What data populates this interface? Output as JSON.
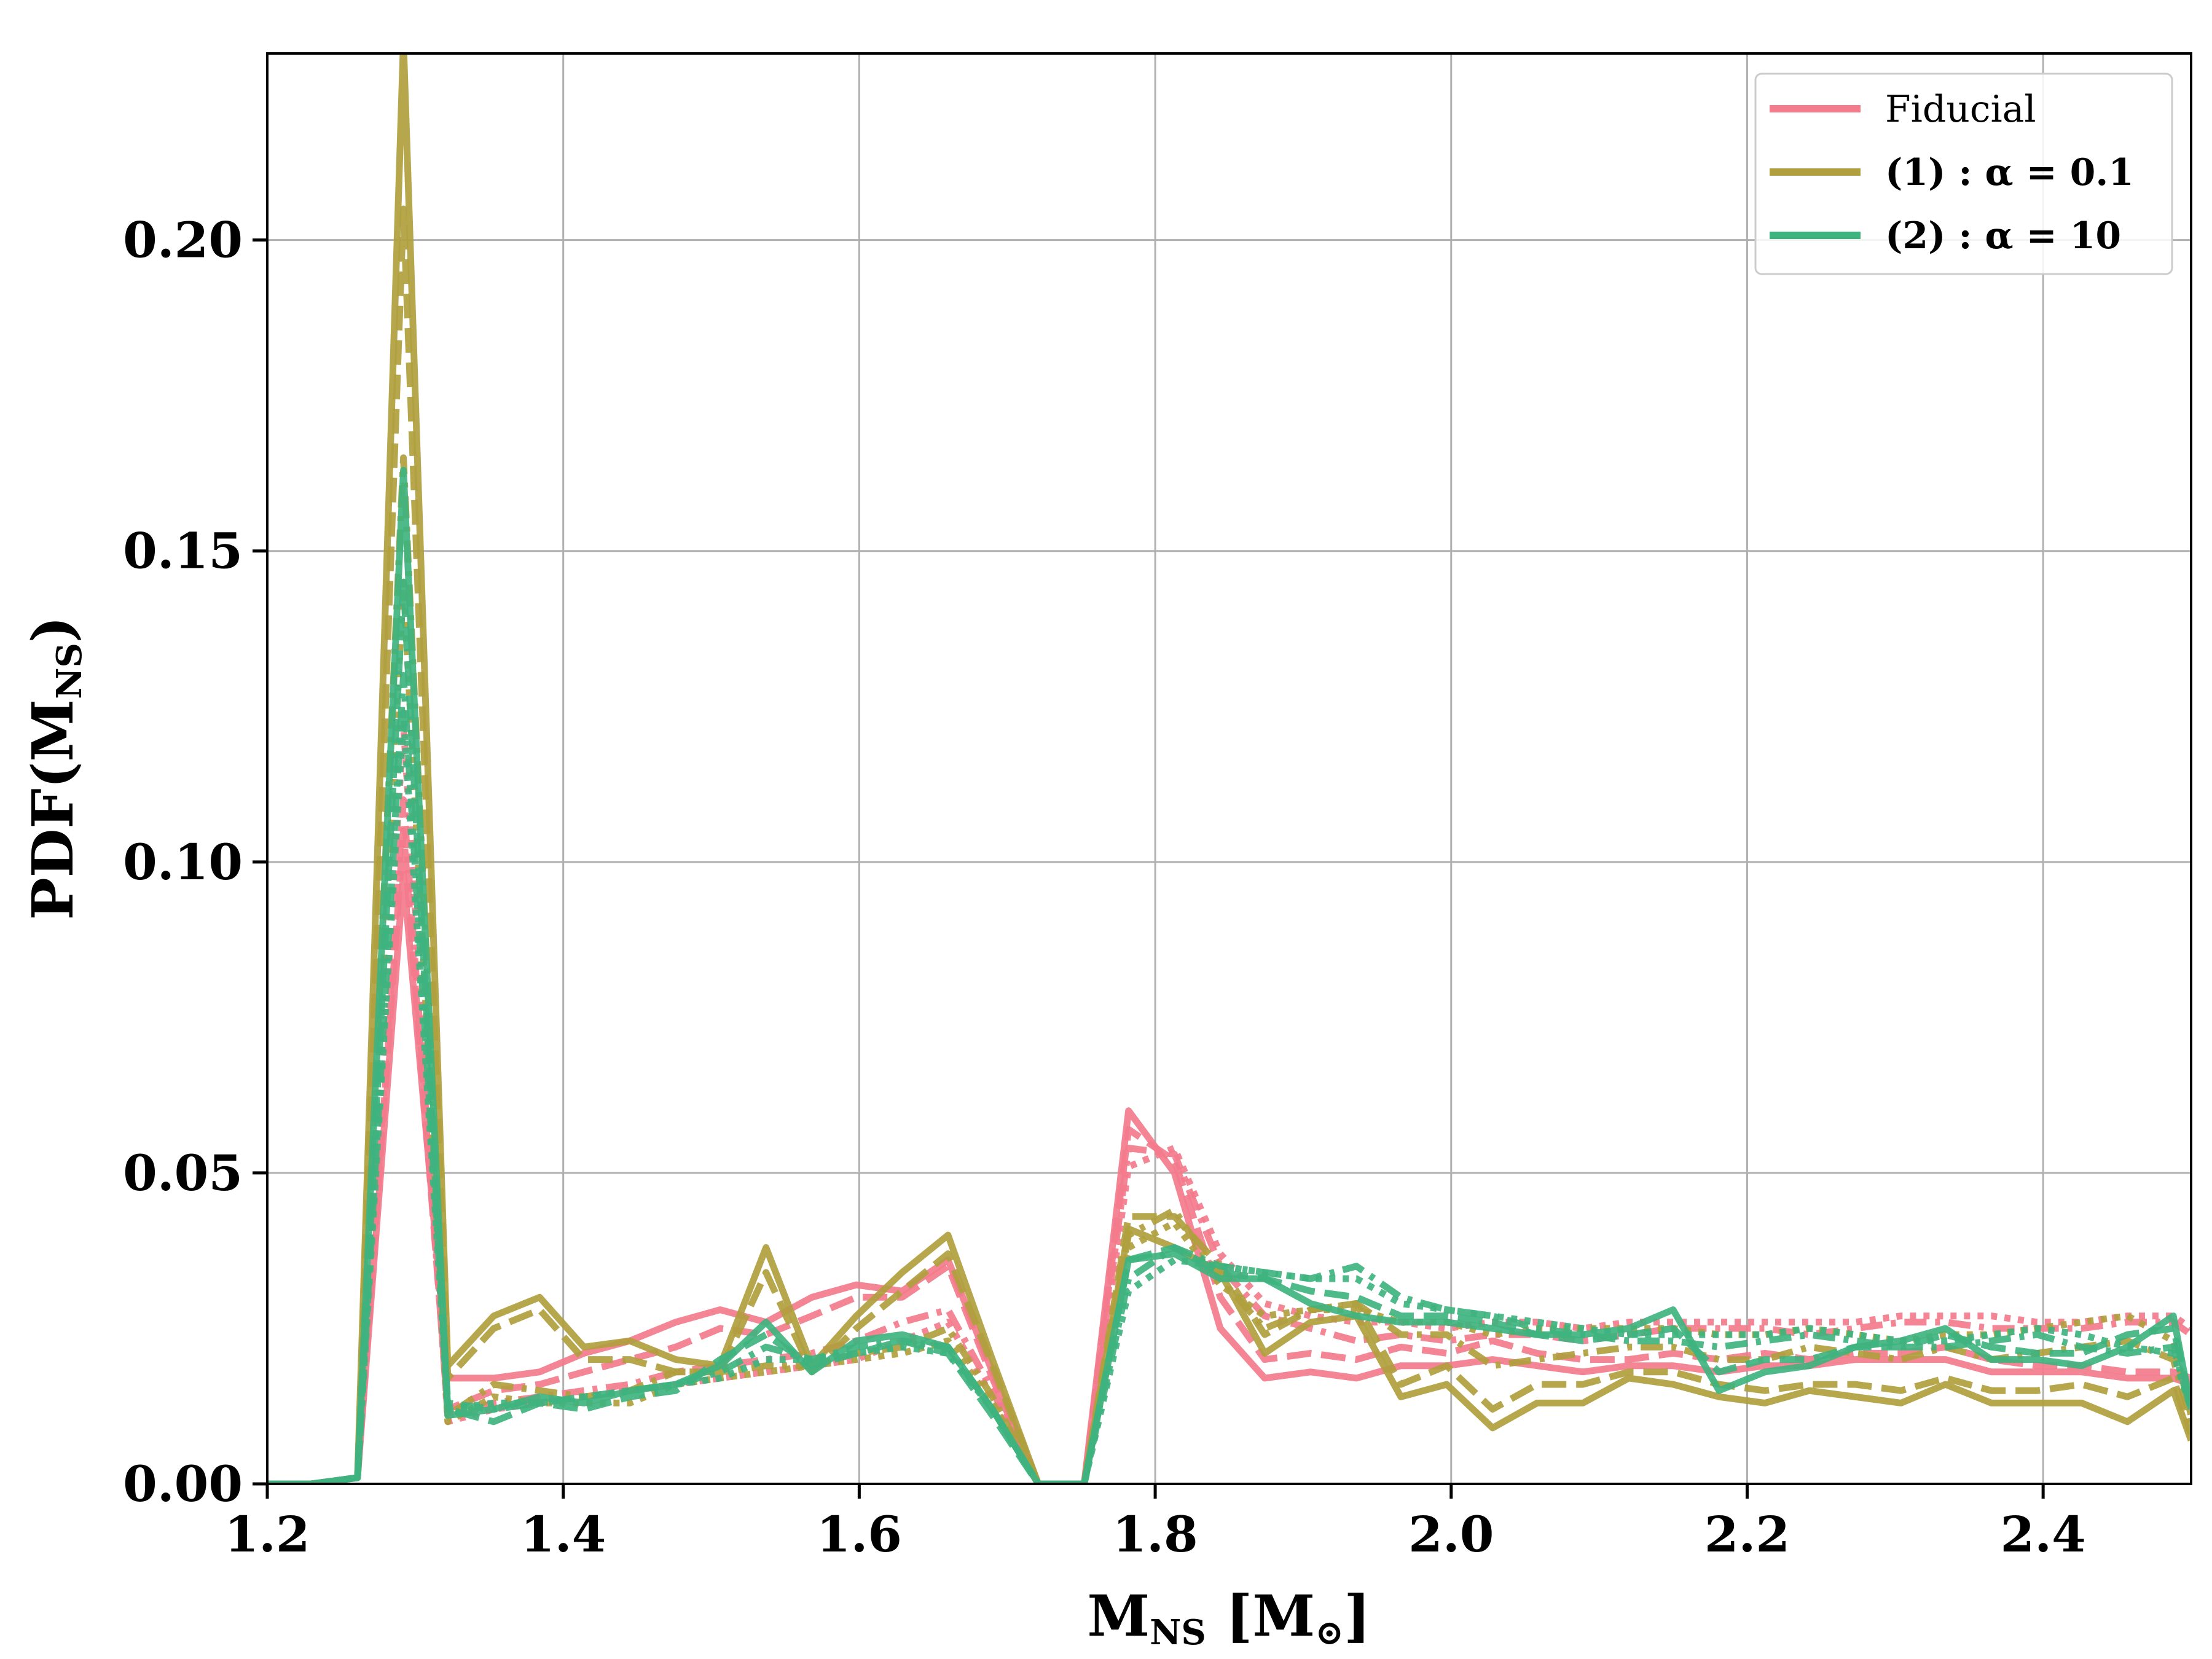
{
  "chart_data": {
    "type": "line",
    "xlabel": "M",
    "xlabel_sub": "NS",
    "xlabel_unit_open": " [M",
    "xlabel_unit_sub": "⊙",
    "xlabel_unit_close": "]",
    "ylabel": "PDF(M",
    "ylabel_sub": "NS",
    "ylabel_close": ")",
    "xlim": [
      1.2,
      2.5
    ],
    "ylim": [
      0.0,
      0.23
    ],
    "xticks": [
      1.2,
      1.4,
      1.6,
      1.8,
      2.0,
      2.2,
      2.4
    ],
    "xtick_labels": [
      "1.2",
      "1.4",
      "1.6",
      "1.8",
      "2.0",
      "2.2",
      "2.4"
    ],
    "yticks": [
      0.0,
      0.05,
      0.1,
      0.15,
      0.2
    ],
    "ytick_labels": [
      "0.00",
      "0.05",
      "0.10",
      "0.15",
      "0.20"
    ],
    "grid": true,
    "legend_position": "top-right",
    "legend": [
      {
        "label": "Fiducial",
        "color": "#f37b8c"
      },
      {
        "label": "(1) :  α = 0.1",
        "color": "#b09f3e"
      },
      {
        "label": "(2) :  α = 10",
        "color": "#3fb37f"
      }
    ],
    "x": [
      1.2,
      1.23,
      1.261,
      1.292,
      1.322,
      1.353,
      1.384,
      1.414,
      1.445,
      1.476,
      1.506,
      1.537,
      1.568,
      1.598,
      1.629,
      1.66,
      1.69,
      1.721,
      1.752,
      1.782,
      1.813,
      1.844,
      1.874,
      1.905,
      1.936,
      1.966,
      1.997,
      2.028,
      2.058,
      2.089,
      2.12,
      2.15,
      2.181,
      2.212,
      2.242,
      2.273,
      2.304,
      2.334,
      2.365,
      2.396,
      2.426,
      2.457,
      2.488,
      2.5
    ],
    "series": [
      {
        "group": 0,
        "dash": "solid",
        "color": "#f37b8c",
        "values": [
          0,
          0,
          0.001,
          0.098,
          0.017,
          0.017,
          0.018,
          0.021,
          0.023,
          0.026,
          0.028,
          0.026,
          0.03,
          0.032,
          0.031,
          0.036,
          0.018,
          0,
          0,
          0.06,
          0.05,
          0.025,
          0.017,
          0.018,
          0.017,
          0.019,
          0.019,
          0.02,
          0.019,
          0.018,
          0.019,
          0.019,
          0.018,
          0.019,
          0.019,
          0.02,
          0.02,
          0.02,
          0.018,
          0.018,
          0.018,
          0.017,
          0.017,
          0.016
        ]
      },
      {
        "group": 0,
        "dash": "dashed",
        "color": "#f37b8c",
        "values": [
          0,
          0,
          0.001,
          0.105,
          0.012,
          0.015,
          0.016,
          0.018,
          0.02,
          0.022,
          0.025,
          0.024,
          0.027,
          0.03,
          0.03,
          0.035,
          0.017,
          0,
          0,
          0.057,
          0.052,
          0.03,
          0.02,
          0.021,
          0.02,
          0.022,
          0.021,
          0.023,
          0.021,
          0.02,
          0.02,
          0.021,
          0.02,
          0.021,
          0.02,
          0.021,
          0.021,
          0.022,
          0.02,
          0.019,
          0.019,
          0.018,
          0.018,
          0.017
        ]
      },
      {
        "group": 0,
        "dash": "dashdot",
        "color": "#f37b8c",
        "values": [
          0,
          0,
          0.001,
          0.11,
          0.011,
          0.013,
          0.014,
          0.015,
          0.016,
          0.018,
          0.019,
          0.02,
          0.021,
          0.023,
          0.026,
          0.028,
          0.015,
          0,
          0,
          0.054,
          0.053,
          0.035,
          0.027,
          0.025,
          0.023,
          0.024,
          0.023,
          0.024,
          0.024,
          0.023,
          0.024,
          0.025,
          0.025,
          0.025,
          0.024,
          0.025,
          0.026,
          0.026,
          0.025,
          0.025,
          0.025,
          0.026,
          0.026,
          0.024
        ]
      },
      {
        "group": 0,
        "dash": "dotted",
        "color": "#f37b8c",
        "values": [
          0,
          0,
          0.001,
          0.122,
          0.01,
          0.012,
          0.013,
          0.014,
          0.015,
          0.016,
          0.017,
          0.018,
          0.019,
          0.02,
          0.023,
          0.026,
          0.014,
          0,
          0,
          0.051,
          0.054,
          0.037,
          0.029,
          0.027,
          0.026,
          0.026,
          0.025,
          0.026,
          0.026,
          0.025,
          0.026,
          0.026,
          0.026,
          0.026,
          0.026,
          0.026,
          0.027,
          0.027,
          0.027,
          0.026,
          0.026,
          0.027,
          0.027,
          0.025
        ]
      },
      {
        "group": 1,
        "dash": "solid",
        "color": "#b09f3e",
        "values": [
          0,
          0,
          0.001,
          0.232,
          0.019,
          0.027,
          0.03,
          0.022,
          0.023,
          0.02,
          0.019,
          0.038,
          0.019,
          0.027,
          0.034,
          0.04,
          0.02,
          0,
          0,
          0.041,
          0.038,
          0.034,
          0.021,
          0.026,
          0.027,
          0.014,
          0.016,
          0.009,
          0.013,
          0.013,
          0.017,
          0.016,
          0.014,
          0.013,
          0.015,
          0.014,
          0.013,
          0.016,
          0.013,
          0.013,
          0.013,
          0.01,
          0.015,
          0.007
        ]
      },
      {
        "group": 1,
        "dash": "dashed",
        "color": "#b09f3e",
        "values": [
          0,
          0,
          0.001,
          0.205,
          0.017,
          0.025,
          0.028,
          0.02,
          0.02,
          0.018,
          0.018,
          0.034,
          0.018,
          0.025,
          0.031,
          0.037,
          0.019,
          0,
          0,
          0.043,
          0.043,
          0.035,
          0.024,
          0.028,
          0.029,
          0.016,
          0.019,
          0.012,
          0.016,
          0.016,
          0.018,
          0.018,
          0.016,
          0.015,
          0.016,
          0.016,
          0.015,
          0.017,
          0.015,
          0.015,
          0.016,
          0.014,
          0.017,
          0.008
        ]
      },
      {
        "group": 1,
        "dash": "dashdot",
        "color": "#b09f3e",
        "values": [
          0,
          0,
          0.001,
          0.165,
          0.011,
          0.016,
          0.015,
          0.014,
          0.015,
          0.018,
          0.018,
          0.019,
          0.019,
          0.021,
          0.022,
          0.025,
          0.014,
          0,
          0,
          0.04,
          0.044,
          0.033,
          0.025,
          0.028,
          0.029,
          0.024,
          0.024,
          0.019,
          0.02,
          0.021,
          0.022,
          0.022,
          0.02,
          0.02,
          0.022,
          0.021,
          0.02,
          0.022,
          0.02,
          0.021,
          0.022,
          0.023,
          0.02,
          0.01
        ]
      },
      {
        "group": 1,
        "dash": "dotted",
        "color": "#b09f3e",
        "values": [
          0,
          0,
          0.001,
          0.145,
          0.01,
          0.014,
          0.013,
          0.013,
          0.013,
          0.016,
          0.017,
          0.018,
          0.019,
          0.02,
          0.021,
          0.023,
          0.013,
          0,
          0,
          0.038,
          0.042,
          0.032,
          0.027,
          0.028,
          0.028,
          0.026,
          0.026,
          0.024,
          0.025,
          0.025,
          0.025,
          0.025,
          0.024,
          0.024,
          0.025,
          0.024,
          0.023,
          0.024,
          0.024,
          0.025,
          0.026,
          0.027,
          0.023,
          0.011
        ]
      },
      {
        "group": 2,
        "dash": "solid",
        "color": "#3fb37f",
        "values": [
          0,
          0,
          0.001,
          0.163,
          0.011,
          0.012,
          0.014,
          0.013,
          0.015,
          0.016,
          0.019,
          0.026,
          0.018,
          0.023,
          0.024,
          0.022,
          0.012,
          0,
          0,
          0.036,
          0.037,
          0.033,
          0.033,
          0.029,
          0.027,
          0.026,
          0.026,
          0.025,
          0.024,
          0.024,
          0.025,
          0.028,
          0.015,
          0.018,
          0.019,
          0.022,
          0.023,
          0.025,
          0.02,
          0.02,
          0.019,
          0.022,
          0.027,
          0.012
        ]
      },
      {
        "group": 2,
        "dash": "dashed",
        "color": "#3fb37f",
        "values": [
          0,
          0,
          0.001,
          0.145,
          0.012,
          0.01,
          0.013,
          0.012,
          0.014,
          0.015,
          0.02,
          0.024,
          0.019,
          0.021,
          0.023,
          0.021,
          0.011,
          0,
          0,
          0.036,
          0.038,
          0.034,
          0.033,
          0.031,
          0.03,
          0.027,
          0.027,
          0.026,
          0.024,
          0.023,
          0.024,
          0.025,
          0.018,
          0.02,
          0.02,
          0.022,
          0.022,
          0.024,
          0.022,
          0.021,
          0.021,
          0.024,
          0.025,
          0.013
        ]
      },
      {
        "group": 2,
        "dash": "dashdot",
        "color": "#3fb37f",
        "values": [
          0,
          0,
          0.001,
          0.13,
          0.013,
          0.012,
          0.013,
          0.014,
          0.015,
          0.016,
          0.018,
          0.022,
          0.02,
          0.022,
          0.023,
          0.022,
          0.012,
          0,
          0,
          0.033,
          0.038,
          0.035,
          0.034,
          0.033,
          0.035,
          0.03,
          0.028,
          0.027,
          0.025,
          0.024,
          0.023,
          0.023,
          0.022,
          0.023,
          0.024,
          0.023,
          0.022,
          0.022,
          0.023,
          0.024,
          0.022,
          0.021,
          0.022,
          0.012
        ]
      },
      {
        "group": 2,
        "dash": "dotted",
        "color": "#3fb37f",
        "values": [
          0,
          0,
          0.001,
          0.124,
          0.012,
          0.013,
          0.013,
          0.014,
          0.015,
          0.016,
          0.017,
          0.02,
          0.02,
          0.021,
          0.022,
          0.021,
          0.012,
          0,
          0,
          0.031,
          0.036,
          0.035,
          0.034,
          0.033,
          0.033,
          0.029,
          0.028,
          0.027,
          0.026,
          0.025,
          0.024,
          0.024,
          0.024,
          0.024,
          0.025,
          0.024,
          0.023,
          0.023,
          0.024,
          0.025,
          0.024,
          0.022,
          0.021,
          0.012
        ]
      }
    ]
  }
}
